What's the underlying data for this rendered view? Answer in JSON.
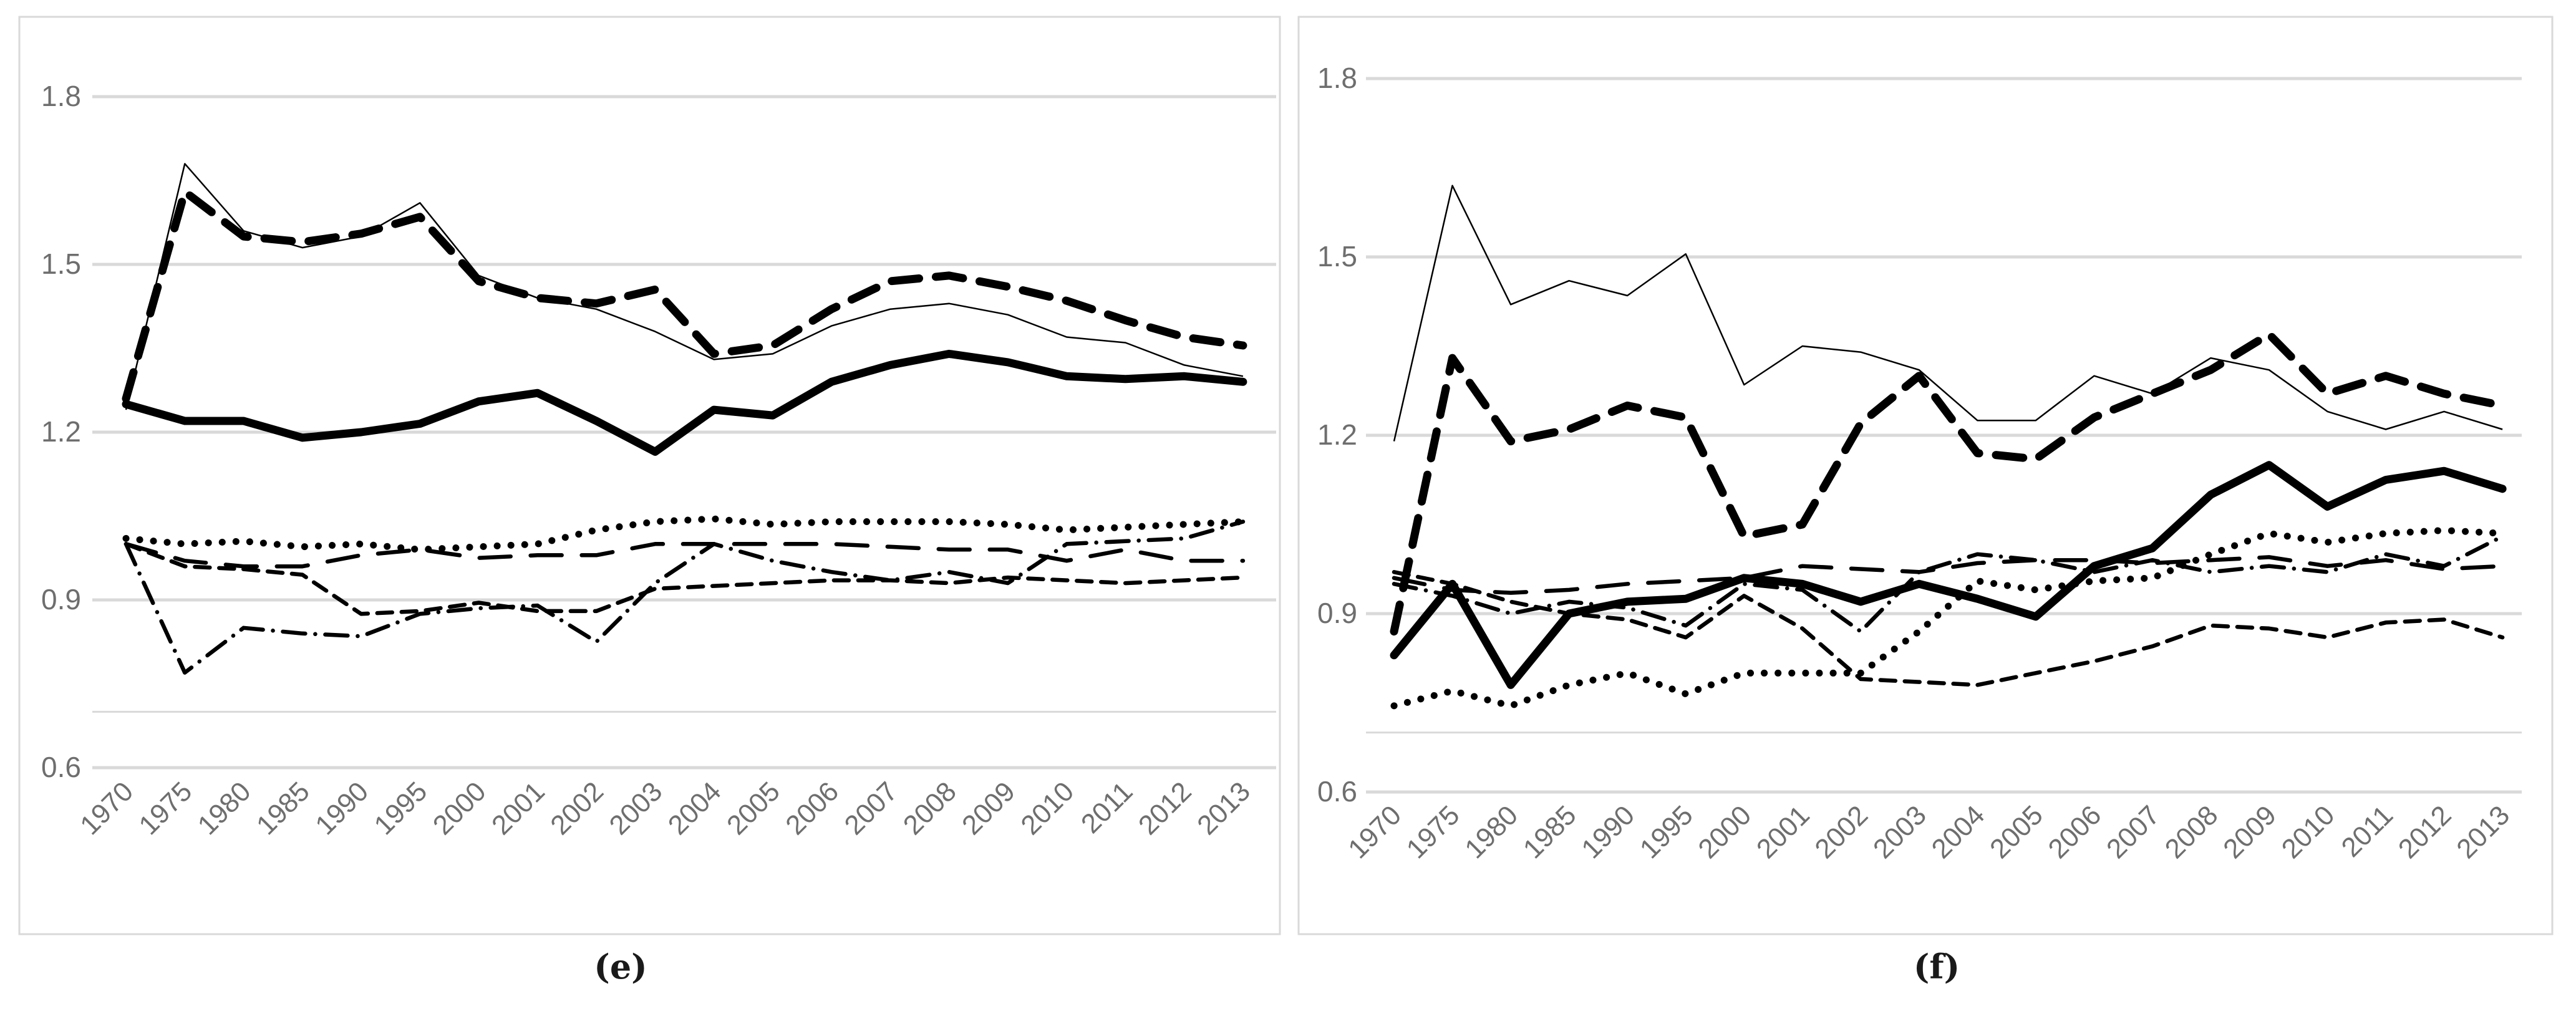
{
  "figure": {
    "caption_e": "(e)",
    "caption_f": "(f)",
    "background_color": "#ffffff",
    "gridline_color": "#d9d9d9",
    "frame_color": "#d9d9d9",
    "axis_label_color": "#6e6e6e",
    "line_color": "#000000"
  },
  "chart_data": [
    {
      "id": "e",
      "type": "line",
      "caption": "(e)",
      "title": "",
      "xlabel": "",
      "ylabel": "",
      "legend": "none",
      "grid": "horizontal",
      "ylim": [
        0.6,
        1.8
      ],
      "y_ticks": [
        "1.8",
        "1.5",
        "1.2",
        "0.9",
        "0.6"
      ],
      "unlabeled_line_value": 0.7,
      "categories": [
        "1970",
        "1975",
        "1980",
        "1985",
        "1990",
        "1995",
        "2000",
        "2001",
        "2002",
        "2003",
        "2004",
        "2005",
        "2006",
        "2007",
        "2008",
        "2009",
        "2010",
        "2011",
        "2012",
        "2013"
      ],
      "series": [
        {
          "name": "thin-solid",
          "style": "thin-solid",
          "values": [
            1.24,
            1.68,
            1.56,
            1.53,
            1.55,
            1.61,
            1.48,
            1.44,
            1.42,
            1.38,
            1.33,
            1.34,
            1.39,
            1.42,
            1.43,
            1.41,
            1.37,
            1.36,
            1.32,
            1.3
          ]
        },
        {
          "name": "long-dash",
          "style": "long-dash",
          "values": [
            1.0,
            0.97,
            0.96,
            0.96,
            0.98,
            0.99,
            0.975,
            0.98,
            0.98,
            1.0,
            1.0,
            1.0,
            1.0,
            0.995,
            0.99,
            0.99,
            0.97,
            0.99,
            0.97,
            0.97
          ]
        },
        {
          "name": "short-dash",
          "style": "short-dash",
          "values": [
            1.0,
            0.96,
            0.955,
            0.945,
            0.875,
            0.88,
            0.895,
            0.88,
            0.88,
            0.92,
            0.925,
            0.93,
            0.935,
            0.935,
            0.93,
            0.94,
            0.935,
            0.93,
            0.935,
            0.94
          ]
        },
        {
          "name": "dash-dot",
          "style": "dash-dot",
          "values": [
            1.0,
            0.77,
            0.85,
            0.84,
            0.835,
            0.875,
            0.885,
            0.89,
            0.825,
            0.93,
            1.0,
            0.97,
            0.95,
            0.935,
            0.95,
            0.93,
            1.0,
            1.005,
            1.01,
            1.04
          ]
        },
        {
          "name": "dotted",
          "style": "dotted",
          "values": [
            1.01,
            1.0,
            1.005,
            0.995,
            1.0,
            0.99,
            0.995,
            1.0,
            1.025,
            1.04,
            1.045,
            1.035,
            1.04,
            1.04,
            1.04,
            1.035,
            1.025,
            1.03,
            1.035,
            1.04
          ]
        },
        {
          "name": "thick-dashed",
          "style": "thick-dashed",
          "values": [
            1.26,
            1.63,
            1.55,
            1.54,
            1.555,
            1.585,
            1.47,
            1.44,
            1.43,
            1.455,
            1.34,
            1.355,
            1.42,
            1.47,
            1.48,
            1.46,
            1.435,
            1.4,
            1.37,
            1.355
          ]
        },
        {
          "name": "thick-solid",
          "style": "thick-solid",
          "values": [
            1.25,
            1.22,
            1.22,
            1.19,
            1.2,
            1.215,
            1.255,
            1.27,
            1.22,
            1.165,
            1.24,
            1.23,
            1.29,
            1.32,
            1.34,
            1.325,
            1.3,
            1.295,
            1.3,
            1.29
          ]
        }
      ]
    },
    {
      "id": "f",
      "type": "line",
      "caption": "(f)",
      "title": "",
      "xlabel": "",
      "ylabel": "",
      "legend": "none",
      "grid": "horizontal",
      "ylim": [
        0.6,
        1.8
      ],
      "y_ticks": [
        "1.8",
        "1.5",
        "1.2",
        "0.9",
        "0.6"
      ],
      "unlabeled_line_value": 0.7,
      "categories": [
        "1970",
        "1975",
        "1980",
        "1985",
        "1990",
        "1995",
        "2000",
        "2001",
        "2002",
        "2003",
        "2004",
        "2005",
        "2006",
        "2007",
        "2008",
        "2009",
        "2010",
        "2011",
        "2012",
        "2013"
      ],
      "series": [
        {
          "name": "thin-solid",
          "style": "thin-solid",
          "values": [
            1.19,
            1.62,
            1.42,
            1.46,
            1.435,
            1.505,
            1.285,
            1.35,
            1.34,
            1.31,
            1.225,
            1.225,
            1.3,
            1.27,
            1.33,
            1.31,
            1.24,
            1.21,
            1.24,
            1.21
          ]
        },
        {
          "name": "long-dash",
          "style": "long-dash",
          "values": [
            0.96,
            0.94,
            0.935,
            0.94,
            0.95,
            0.955,
            0.96,
            0.98,
            0.975,
            0.97,
            0.985,
            0.99,
            0.99,
            0.985,
            0.99,
            0.995,
            0.98,
            0.99,
            0.975,
            0.98
          ]
        },
        {
          "name": "short-dash",
          "style": "short-dash",
          "values": [
            0.97,
            0.95,
            0.92,
            0.9,
            0.89,
            0.86,
            0.93,
            0.875,
            0.79,
            0.785,
            0.78,
            0.8,
            0.82,
            0.845,
            0.88,
            0.875,
            0.86,
            0.885,
            0.89,
            0.86
          ]
        },
        {
          "name": "dash-dot",
          "style": "dash-dot",
          "values": [
            0.95,
            0.93,
            0.9,
            0.92,
            0.91,
            0.88,
            0.95,
            0.94,
            0.87,
            0.97,
            1.0,
            0.99,
            0.97,
            0.99,
            0.97,
            0.98,
            0.97,
            1.0,
            0.98,
            1.03
          ]
        },
        {
          "name": "dotted",
          "style": "dotted",
          "values": [
            0.745,
            0.77,
            0.745,
            0.78,
            0.8,
            0.765,
            0.8,
            0.8,
            0.8,
            0.87,
            0.955,
            0.94,
            0.955,
            0.96,
            1.0,
            1.035,
            1.02,
            1.035,
            1.04,
            1.035
          ]
        },
        {
          "name": "thick-dashed",
          "style": "thick-dashed",
          "values": [
            0.87,
            1.33,
            1.19,
            1.21,
            1.25,
            1.23,
            1.03,
            1.05,
            1.22,
            1.3,
            1.17,
            1.16,
            1.23,
            1.27,
            1.31,
            1.37,
            1.27,
            1.3,
            1.27,
            1.25
          ]
        },
        {
          "name": "thick-solid",
          "style": "thick-solid",
          "values": [
            0.83,
            0.95,
            0.78,
            0.9,
            0.92,
            0.925,
            0.96,
            0.95,
            0.92,
            0.95,
            0.925,
            0.895,
            0.98,
            1.01,
            1.1,
            1.15,
            1.08,
            1.125,
            1.14,
            1.11
          ]
        }
      ]
    }
  ]
}
